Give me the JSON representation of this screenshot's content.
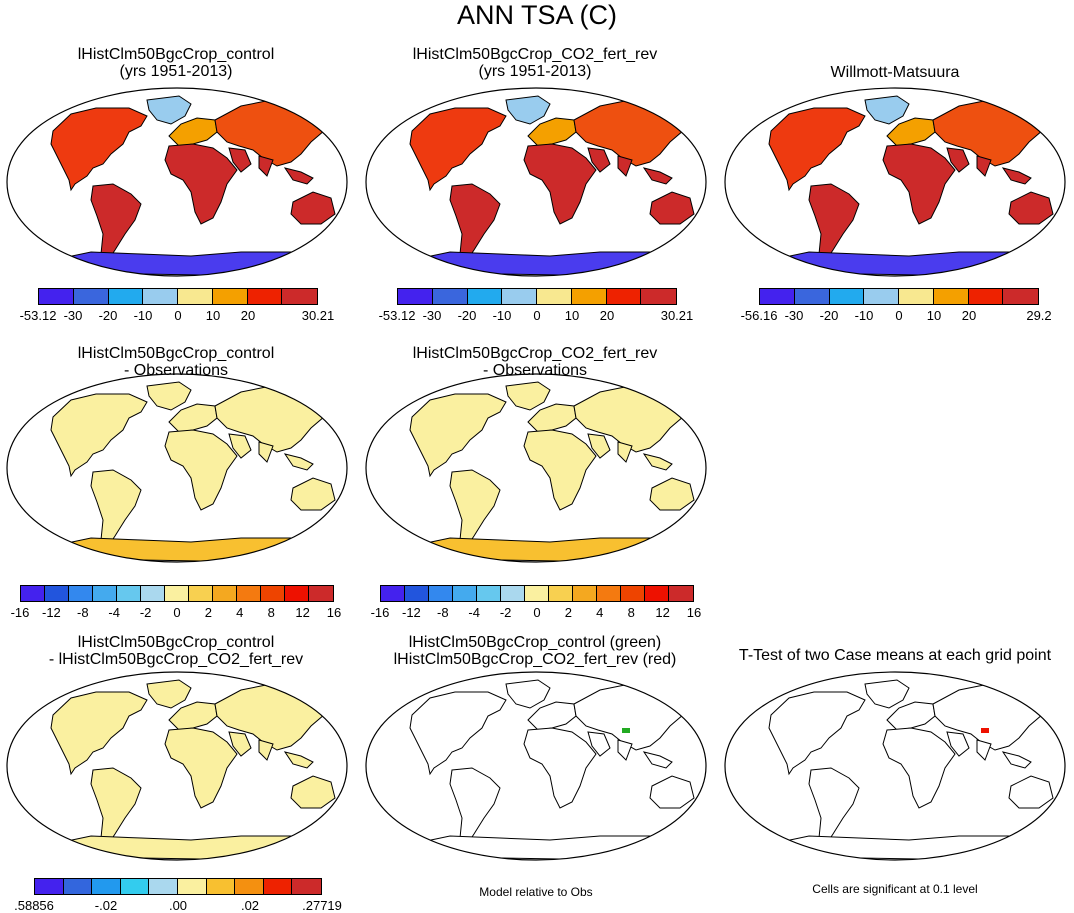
{
  "title": "ANN TSA (C)",
  "panels": {
    "p1": {
      "line1": "lHistClm50BgcCrop_control",
      "line2": "(yrs 1951-2013)"
    },
    "p2": {
      "line1": "lHistClm50BgcCrop_CO2_fert_rev",
      "line2": "(yrs 1951-2013)"
    },
    "p3": {
      "line1": "Willmott-Matsuura",
      "line2": ""
    },
    "p4": {
      "line1": "lHistClm50BgcCrop_control",
      "line2": "- Observations"
    },
    "p5": {
      "line1": "lHistClm50BgcCrop_CO2_fert_rev",
      "line2": "- Observations"
    },
    "p7": {
      "line1": "lHistClm50BgcCrop_control",
      "line2": "- lHistClm50BgcCrop_CO2_fert_rev"
    },
    "p8": {
      "line1": "lHistClm50BgcCrop_control (green)",
      "line2": "lHistClm50BgcCrop_CO2_fert_rev (red)"
    },
    "p9": {
      "line1": "T-Test of two Case means at each grid point",
      "line2": ""
    }
  },
  "colorbars": {
    "cb1": {
      "colors": [
        "#4422ee",
        "#3a66dd",
        "#22aaee",
        "#99ccee",
        "#f8e890",
        "#f4a000",
        "#ee2200",
        "#cc2a2a"
      ],
      "labels": [
        "-53.12",
        "-30",
        "-20",
        "-10",
        "0",
        "10",
        "20",
        "30.21"
      ]
    },
    "cb2": {
      "colors": [
        "#4422ee",
        "#3a66dd",
        "#22aaee",
        "#99ccee",
        "#f8e890",
        "#f4a000",
        "#ee2200",
        "#cc2a2a"
      ],
      "labels": [
        "-53.12",
        "-30",
        "-20",
        "-10",
        "0",
        "10",
        "20",
        "30.21"
      ]
    },
    "cb3": {
      "colors": [
        "#4422ee",
        "#3a66dd",
        "#22aaee",
        "#99ccee",
        "#f8e890",
        "#f4a000",
        "#ee2200",
        "#cc2a2a"
      ],
      "labels": [
        "-56.16",
        "-30",
        "-20",
        "-10",
        "0",
        "10",
        "20",
        "29.2"
      ]
    },
    "cb4": {
      "colors": [
        "#4422ee",
        "#2255dd",
        "#3388ee",
        "#44aaee",
        "#66c8ee",
        "#aad8ee",
        "#faf0a0",
        "#f8d050",
        "#f4a820",
        "#f47a10",
        "#ee4400",
        "#ee1100",
        "#cc2a2a"
      ],
      "labels": [
        "-16",
        "-12",
        "-8",
        "-4",
        "-2",
        "0",
        "2",
        "4",
        "8",
        "12",
        "16"
      ]
    },
    "cb5": {
      "colors": [
        "#4422ee",
        "#2255dd",
        "#3388ee",
        "#44aaee",
        "#66c8ee",
        "#aad8ee",
        "#faf0a0",
        "#f8d050",
        "#f4a820",
        "#f47a10",
        "#ee4400",
        "#ee1100",
        "#cc2a2a"
      ],
      "labels": [
        "-16",
        "-12",
        "-8",
        "-4",
        "-2",
        "0",
        "2",
        "4",
        "8",
        "12",
        "16"
      ]
    },
    "cb7": {
      "colors": [
        "#4422ee",
        "#3366dd",
        "#2299ee",
        "#33ccee",
        "#aad8ee",
        "#faf0a0",
        "#f8c030",
        "#f49010",
        "#ee2200",
        "#cc2a2a"
      ],
      "labels": [
        ".58856",
        "-.02",
        ".00",
        ".02",
        ".27719"
      ]
    }
  },
  "notes": {
    "model_relative": "Model relative to Obs",
    "significance": "Cells are significant at 0.1 level"
  },
  "land_colors": {
    "p1": "#cc2a2a",
    "p2": "#cc2a2a",
    "p3": "#cc2a2a",
    "p4": "#faf0a0",
    "p5": "#faf0a0",
    "p7": "#faf0a0",
    "p8": "#ffffff",
    "p9": "#ffffff"
  }
}
